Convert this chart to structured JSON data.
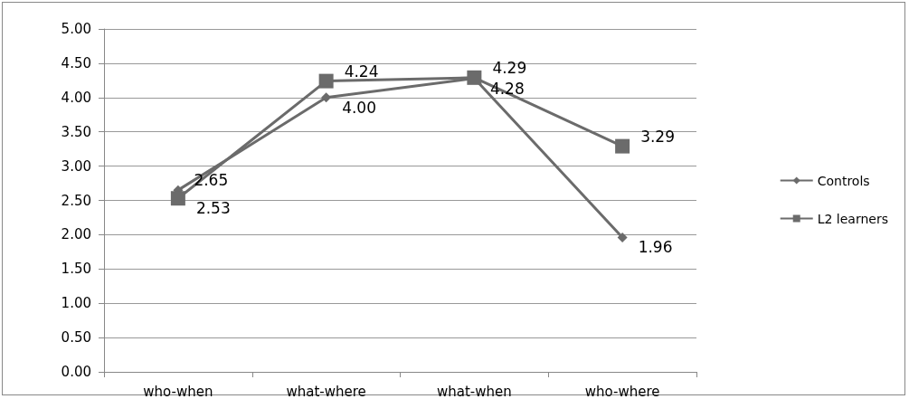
{
  "chart_data": {
    "type": "line",
    "categories": [
      "who-when",
      "what-where",
      "what-when",
      "who-where"
    ],
    "series": [
      {
        "name": "Controls",
        "color": "#6b6b6b",
        "marker": "diamond",
        "values": [
          2.65,
          4.0,
          4.28,
          1.96
        ],
        "value_labels": [
          "2.65",
          "4.00",
          "4.28",
          "1.96"
        ]
      },
      {
        "name": "L2 learners",
        "color": "#6b6b6b",
        "marker": "square",
        "values": [
          2.53,
          4.24,
          4.29,
          3.29
        ],
        "value_labels": [
          "2.53",
          "4.24",
          "4.29",
          "3.29"
        ]
      }
    ],
    "ylim": [
      0,
      5
    ],
    "yticks": [
      {
        "value": 0,
        "label": "0.00"
      },
      {
        "value": 0.5,
        "label": "0.50"
      },
      {
        "value": 1,
        "label": "1.00"
      },
      {
        "value": 1.5,
        "label": "1.50"
      },
      {
        "value": 2,
        "label": "2.00"
      },
      {
        "value": 2.5,
        "label": "2.50"
      },
      {
        "value": 3,
        "label": "3.00"
      },
      {
        "value": 3.5,
        "label": "3.50"
      },
      {
        "value": 4,
        "label": "4.00"
      },
      {
        "value": 4.5,
        "label": "4.50"
      },
      {
        "value": 5,
        "label": "5.00"
      }
    ],
    "grid": "y",
    "legend": "right"
  }
}
